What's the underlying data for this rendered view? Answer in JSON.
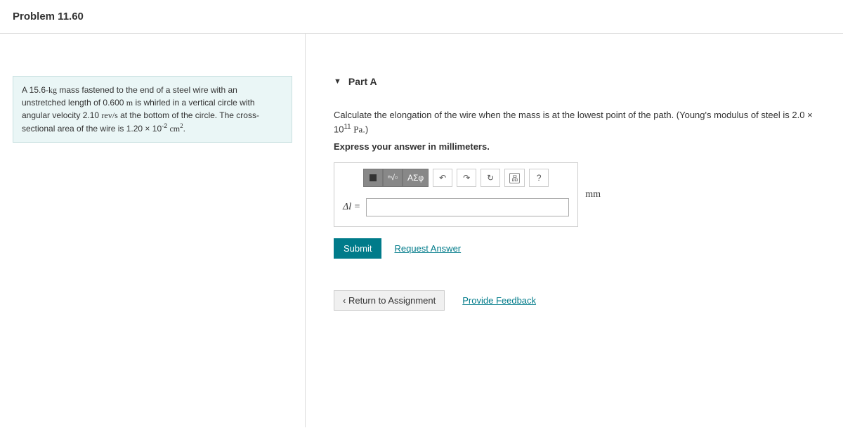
{
  "header": {
    "title": "Problem 11.60"
  },
  "problem": {
    "text_html": "A 15.6-<span class='serif'>kg</span> mass fastened to the end of a steel wire with an unstretched length of 0.600 <span class='serif'>m</span> is whirled in a vertical circle with angular velocity 2.10 <span class='serif'>rev/s</span> at the bottom of the circle. The cross-sectional area of the wire is 1.20 × 10<sup>-2</sup> <span class='serif'>cm<sup>2</sup></span>."
  },
  "part": {
    "caret": "▼",
    "label": "Part A",
    "instruction_html": "Calculate the elongation of the wire when the mass is at the lowest point of the path. (Young's modulus of steel is 2.0 × 10<sup>11</sup> <span class='serif'>Pa</span>.)",
    "sub_instruction": "Express your answer in millimeters.",
    "toolbar": {
      "templates_label": "√x",
      "symbols_label": "ΑΣφ",
      "help_label": "?",
      "keyboard_label": "⌨"
    },
    "variable_html": "Δ<i>l</i> =",
    "answer_value": "",
    "unit": "mm",
    "submit_label": "Submit",
    "request_answer_label": "Request Answer"
  },
  "footer": {
    "return_label": "Return to Assignment",
    "feedback_label": "Provide Feedback"
  },
  "colors": {
    "accent": "#007b8a",
    "problem_bg": "#eaf6f6"
  }
}
